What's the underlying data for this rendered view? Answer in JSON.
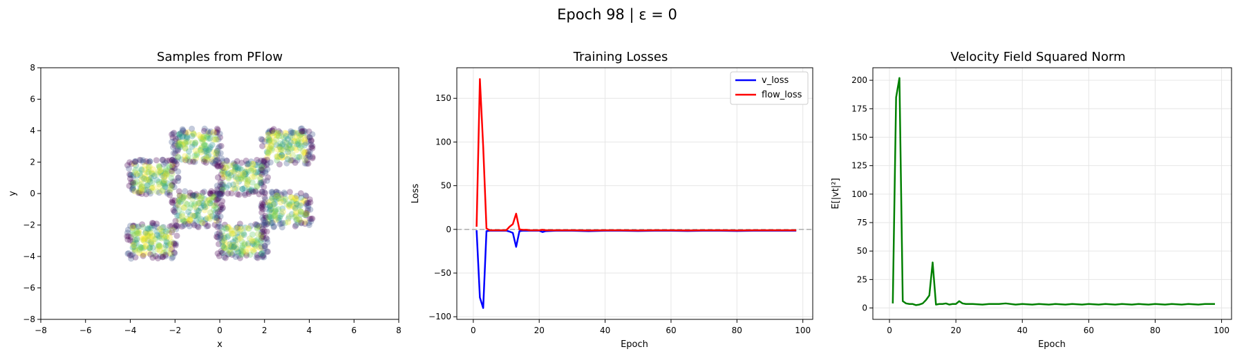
{
  "suptitle": "Epoch 98 | ε = 0",
  "colors": {
    "v_loss": "#0000ff",
    "flow_loss": "#ff0000",
    "norm": "#008000",
    "grid": "#e6e6e6",
    "zero_line": "#aaaaaa",
    "scatter_palette": [
      "#440154",
      "#3b528b",
      "#21918c",
      "#5ec962",
      "#a7d43a",
      "#fde725"
    ]
  },
  "chart_data": [
    {
      "type": "scatter",
      "title": "Samples from PFlow",
      "xlabel": "x",
      "ylabel": "y",
      "xlim": [
        -8,
        8
      ],
      "ylim": [
        -8,
        8
      ],
      "xticks": [
        -8,
        -6,
        -4,
        -2,
        0,
        2,
        4,
        6,
        8
      ],
      "yticks": [
        -8,
        -6,
        -4,
        -2,
        0,
        2,
        4,
        6,
        8
      ],
      "grid": false,
      "clusters": [
        {
          "x": [
            -4,
            -2
          ],
          "y": [
            0,
            2
          ]
        },
        {
          "x": [
            -2,
            0
          ],
          "y": [
            2,
            4
          ]
        },
        {
          "x": [
            0,
            2
          ],
          "y": [
            0,
            2
          ]
        },
        {
          "x": [
            2,
            4
          ],
          "y": [
            2,
            4
          ]
        },
        {
          "x": [
            -2,
            0
          ],
          "y": [
            -2,
            0
          ]
        },
        {
          "x": [
            2,
            4
          ],
          "y": [
            -2,
            0
          ]
        },
        {
          "x": [
            -4,
            -2
          ],
          "y": [
            -4,
            -2
          ]
        },
        {
          "x": [
            0,
            2
          ],
          "y": [
            -4,
            -2
          ]
        }
      ]
    },
    {
      "type": "line",
      "title": "Training Losses",
      "xlabel": "Epoch",
      "ylabel": "Loss",
      "xlim": [
        -5,
        103
      ],
      "ylim": [
        -103,
        185
      ],
      "xticks": [
        0,
        20,
        40,
        60,
        80,
        100
      ],
      "yticks": [
        -100,
        -50,
        0,
        50,
        100,
        150
      ],
      "grid": true,
      "legend": "top-right",
      "reference_line_y": 0,
      "series": [
        {
          "name": "v_loss",
          "points": [
            [
              1,
              -1
            ],
            [
              2,
              -78
            ],
            [
              3,
              -90
            ],
            [
              4,
              -2
            ],
            [
              5,
              -1.5
            ],
            [
              6,
              -1.5
            ],
            [
              7,
              -1.5
            ],
            [
              8,
              -1.5
            ],
            [
              9,
              -1.5
            ],
            [
              10,
              -1.5
            ],
            [
              11,
              -2.5
            ],
            [
              12,
              -4
            ],
            [
              13,
              -20
            ],
            [
              14,
              -2
            ],
            [
              15,
              -1.5
            ],
            [
              16,
              -1.5
            ],
            [
              17,
              -1.5
            ],
            [
              18,
              -1.5
            ],
            [
              19,
              -1.5
            ],
            [
              20,
              -1.5
            ],
            [
              21,
              -3
            ],
            [
              22,
              -2
            ],
            [
              25,
              -1.5
            ],
            [
              30,
              -1.5
            ],
            [
              35,
              -2
            ],
            [
              40,
              -1.5
            ],
            [
              45,
              -1.5
            ],
            [
              50,
              -1.8
            ],
            [
              55,
              -1.5
            ],
            [
              60,
              -1.5
            ],
            [
              65,
              -1.8
            ],
            [
              70,
              -1.5
            ],
            [
              75,
              -1.5
            ],
            [
              80,
              -1.8
            ],
            [
              85,
              -1.5
            ],
            [
              90,
              -1.5
            ],
            [
              95,
              -1.5
            ],
            [
              98,
              -1.5
            ]
          ]
        },
        {
          "name": "flow_loss",
          "points": [
            [
              1,
              3
            ],
            [
              2,
              172
            ],
            [
              3,
              95
            ],
            [
              4,
              1
            ],
            [
              5,
              -1
            ],
            [
              6,
              -1
            ],
            [
              7,
              -1
            ],
            [
              8,
              -1
            ],
            [
              9,
              -1
            ],
            [
              10,
              -1
            ],
            [
              11,
              3
            ],
            [
              12,
              6
            ],
            [
              13,
              18
            ],
            [
              14,
              0
            ],
            [
              15,
              -0.5
            ],
            [
              16,
              -0.5
            ],
            [
              17,
              -1
            ],
            [
              18,
              -1
            ],
            [
              19,
              -1
            ],
            [
              20,
              -1
            ],
            [
              21,
              -0.5
            ],
            [
              22,
              -1
            ],
            [
              25,
              -1
            ],
            [
              30,
              -1
            ],
            [
              35,
              -1.2
            ],
            [
              40,
              -1
            ],
            [
              45,
              -1
            ],
            [
              50,
              -1.2
            ],
            [
              55,
              -1
            ],
            [
              60,
              -1
            ],
            [
              65,
              -1.2
            ],
            [
              70,
              -1
            ],
            [
              75,
              -1
            ],
            [
              80,
              -1.2
            ],
            [
              85,
              -1
            ],
            [
              90,
              -1
            ],
            [
              95,
              -1
            ],
            [
              98,
              -1
            ]
          ]
        }
      ]
    },
    {
      "type": "line",
      "title": "Velocity Field Squared Norm",
      "xlabel": "Epoch",
      "ylabel": "E[|vt|²]",
      "xlim": [
        -5,
        103
      ],
      "ylim": [
        -10,
        211
      ],
      "xticks": [
        0,
        20,
        40,
        60,
        80,
        100
      ],
      "yticks": [
        0,
        25,
        50,
        75,
        100,
        125,
        150,
        175,
        200
      ],
      "grid": true,
      "series": [
        {
          "points": [
            [
              1,
              4
            ],
            [
              2,
              185
            ],
            [
              3,
              202
            ],
            [
              4,
              6
            ],
            [
              5,
              4
            ],
            [
              6,
              3.5
            ],
            [
              7,
              3.5
            ],
            [
              8,
              2.5
            ],
            [
              9,
              3
            ],
            [
              10,
              4
            ],
            [
              11,
              7
            ],
            [
              12,
              11
            ],
            [
              13,
              40
            ],
            [
              14,
              3
            ],
            [
              15,
              3.5
            ],
            [
              16,
              3.5
            ],
            [
              17,
              4
            ],
            [
              18,
              3
            ],
            [
              19,
              3.5
            ],
            [
              20,
              3.5
            ],
            [
              21,
              6
            ],
            [
              22,
              4
            ],
            [
              23,
              3.5
            ],
            [
              25,
              3.5
            ],
            [
              28,
              3
            ],
            [
              30,
              3.5
            ],
            [
              33,
              3.5
            ],
            [
              35,
              4
            ],
            [
              38,
              3
            ],
            [
              40,
              3.5
            ],
            [
              43,
              3
            ],
            [
              45,
              3.5
            ],
            [
              48,
              3
            ],
            [
              50,
              3.5
            ],
            [
              53,
              3
            ],
            [
              55,
              3.5
            ],
            [
              58,
              3
            ],
            [
              60,
              3.5
            ],
            [
              63,
              3
            ],
            [
              65,
              3.5
            ],
            [
              68,
              3
            ],
            [
              70,
              3.5
            ],
            [
              73,
              3
            ],
            [
              75,
              3.5
            ],
            [
              78,
              3
            ],
            [
              80,
              3.5
            ],
            [
              83,
              3
            ],
            [
              85,
              3.5
            ],
            [
              88,
              3
            ],
            [
              90,
              3.5
            ],
            [
              93,
              3
            ],
            [
              95,
              3.5
            ],
            [
              98,
              3.5
            ]
          ]
        }
      ]
    }
  ]
}
